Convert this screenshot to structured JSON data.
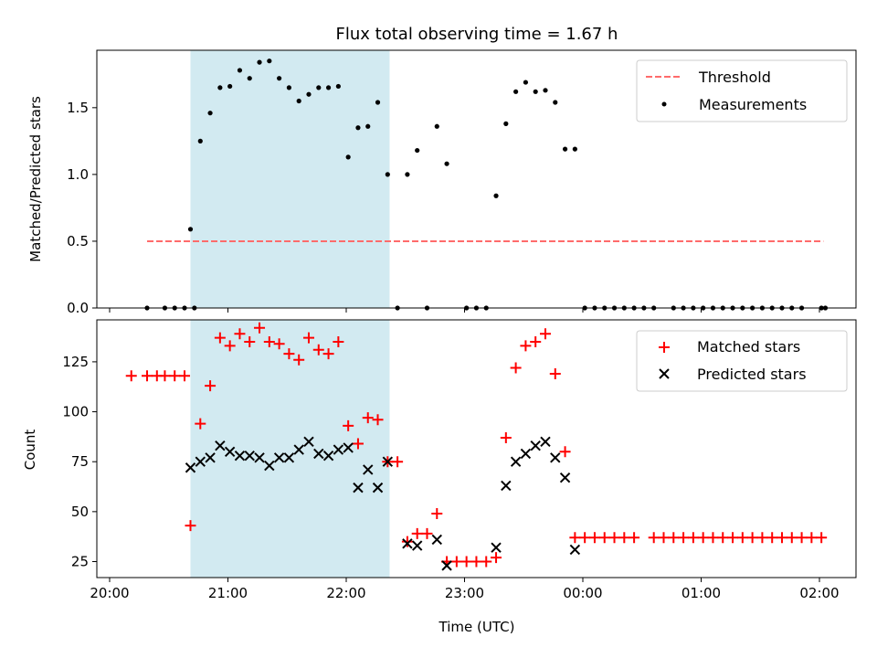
{
  "chart_data": [
    {
      "type": "scatter",
      "title": "Flux total observing time = 1.67 h",
      "xlabel": "",
      "ylabel": "Matched/Predicted stars",
      "xlim": [
        "20:00",
        "02:00"
      ],
      "ylim": [
        0,
        1.93
      ],
      "yticks": [
        0.0,
        0.5,
        1.0,
        1.5
      ],
      "ytick_labels": [
        "0.0",
        "0.5",
        "1.0",
        "1.5"
      ],
      "legend_position": "upper right",
      "highlight_span": {
        "start": "20:41",
        "end": "22:22",
        "color": "#add8e6"
      },
      "threshold": {
        "name": "Threshold",
        "value": 0.5,
        "x_start": "20:19",
        "x_end": "02:02",
        "color": "#ff6b6b",
        "style": "dashed"
      },
      "series": [
        {
          "name": "Measurements",
          "color": "#000000",
          "marker": "dot",
          "points": [
            [
              "20:19",
              0
            ],
            [
              "20:28",
              0
            ],
            [
              "20:33",
              0
            ],
            [
              "20:38",
              0
            ],
            [
              "20:43",
              0
            ],
            [
              "20:41",
              0.59
            ],
            [
              "20:46",
              1.25
            ],
            [
              "20:51",
              1.46
            ],
            [
              "20:56",
              1.65
            ],
            [
              "21:01",
              1.66
            ],
            [
              "21:06",
              1.78
            ],
            [
              "21:11",
              1.72
            ],
            [
              "21:16",
              1.84
            ],
            [
              "21:21",
              1.85
            ],
            [
              "21:26",
              1.72
            ],
            [
              "21:31",
              1.65
            ],
            [
              "21:36",
              1.55
            ],
            [
              "21:41",
              1.6
            ],
            [
              "21:46",
              1.65
            ],
            [
              "21:51",
              1.65
            ],
            [
              "21:56",
              1.66
            ],
            [
              "22:01",
              1.13
            ],
            [
              "22:06",
              1.35
            ],
            [
              "22:11",
              1.36
            ],
            [
              "22:16",
              1.54
            ],
            [
              "22:21",
              1.0
            ],
            [
              "22:26",
              0
            ],
            [
              "22:31",
              1.0
            ],
            [
              "22:36",
              1.18
            ],
            [
              "22:41",
              0
            ],
            [
              "22:46",
              1.36
            ],
            [
              "22:51",
              1.08
            ],
            [
              "23:01",
              0
            ],
            [
              "23:06",
              0
            ],
            [
              "23:11",
              0
            ],
            [
              "23:16",
              0.84
            ],
            [
              "23:21",
              1.38
            ],
            [
              "23:26",
              1.62
            ],
            [
              "23:31",
              1.69
            ],
            [
              "23:36",
              1.62
            ],
            [
              "23:41",
              1.63
            ],
            [
              "23:46",
              1.54
            ],
            [
              "23:51",
              1.19
            ],
            [
              "23:56",
              1.19
            ],
            [
              "00:01",
              0
            ],
            [
              "00:06",
              0
            ],
            [
              "00:11",
              0
            ],
            [
              "00:16",
              0
            ],
            [
              "00:21",
              0
            ],
            [
              "00:26",
              0
            ],
            [
              "00:31",
              0
            ],
            [
              "00:36",
              0
            ],
            [
              "00:46",
              0
            ],
            [
              "00:51",
              0
            ],
            [
              "00:56",
              0
            ],
            [
              "01:01",
              0
            ],
            [
              "01:06",
              0
            ],
            [
              "01:11",
              0
            ],
            [
              "01:16",
              0
            ],
            [
              "01:21",
              0
            ],
            [
              "01:26",
              0
            ],
            [
              "01:31",
              0
            ],
            [
              "01:36",
              0
            ],
            [
              "01:41",
              0
            ],
            [
              "01:46",
              0
            ],
            [
              "01:51",
              0
            ],
            [
              "02:01",
              0
            ],
            [
              "02:03",
              0
            ]
          ]
        }
      ]
    },
    {
      "type": "scatter",
      "title": "",
      "xlabel": "Time (UTC)",
      "ylabel": "Count",
      "xlim": [
        "20:00",
        "02:00"
      ],
      "ylim": [
        17,
        146
      ],
      "xticks": [
        "20:00",
        "21:00",
        "22:00",
        "23:00",
        "00:00",
        "01:00",
        "02:00"
      ],
      "yticks": [
        25,
        50,
        75,
        100,
        125
      ],
      "legend_position": "upper right",
      "highlight_span": {
        "start": "20:41",
        "end": "22:22",
        "color": "#add8e6"
      },
      "series": [
        {
          "name": "Matched stars",
          "color": "#ff0000",
          "marker": "plus",
          "points": [
            [
              "20:11",
              118
            ],
            [
              "20:19",
              118
            ],
            [
              "20:24",
              118
            ],
            [
              "20:28",
              118
            ],
            [
              "20:33",
              118
            ],
            [
              "20:38",
              118
            ],
            [
              "20:41",
              43
            ],
            [
              "20:46",
              94
            ],
            [
              "20:51",
              113
            ],
            [
              "20:56",
              137
            ],
            [
              "21:01",
              133
            ],
            [
              "21:06",
              139
            ],
            [
              "21:11",
              135
            ],
            [
              "21:16",
              142
            ],
            [
              "21:21",
              135
            ],
            [
              "21:26",
              134
            ],
            [
              "21:31",
              129
            ],
            [
              "21:36",
              126
            ],
            [
              "21:41",
              137
            ],
            [
              "21:46",
              131
            ],
            [
              "21:51",
              129
            ],
            [
              "21:56",
              135
            ],
            [
              "22:01",
              93
            ],
            [
              "22:06",
              84
            ],
            [
              "22:11",
              97
            ],
            [
              "22:16",
              96
            ],
            [
              "22:21",
              75
            ],
            [
              "22:26",
              75
            ],
            [
              "22:31",
              35
            ],
            [
              "22:36",
              39
            ],
            [
              "22:41",
              39
            ],
            [
              "22:46",
              49
            ],
            [
              "22:51",
              25
            ],
            [
              "22:56",
              25
            ],
            [
              "23:01",
              25
            ],
            [
              "23:06",
              25
            ],
            [
              "23:11",
              25
            ],
            [
              "23:16",
              27
            ],
            [
              "23:21",
              87
            ],
            [
              "23:26",
              122
            ],
            [
              "23:31",
              133
            ],
            [
              "23:36",
              135
            ],
            [
              "23:41",
              139
            ],
            [
              "23:46",
              119
            ],
            [
              "23:51",
              80
            ],
            [
              "23:56",
              37
            ],
            [
              "00:01",
              37
            ],
            [
              "00:06",
              37
            ],
            [
              "00:11",
              37
            ],
            [
              "00:16",
              37
            ],
            [
              "00:21",
              37
            ],
            [
              "00:26",
              37
            ],
            [
              "00:36",
              37
            ],
            [
              "00:41",
              37
            ],
            [
              "00:46",
              37
            ],
            [
              "00:51",
              37
            ],
            [
              "00:56",
              37
            ],
            [
              "01:01",
              37
            ],
            [
              "01:06",
              37
            ],
            [
              "01:11",
              37
            ],
            [
              "01:16",
              37
            ],
            [
              "01:21",
              37
            ],
            [
              "01:26",
              37
            ],
            [
              "01:31",
              37
            ],
            [
              "01:36",
              37
            ],
            [
              "01:41",
              37
            ],
            [
              "01:46",
              37
            ],
            [
              "01:51",
              37
            ],
            [
              "01:56",
              37
            ],
            [
              "02:01",
              37
            ]
          ]
        },
        {
          "name": "Predicted stars",
          "color": "#000000",
          "marker": "x",
          "points": [
            [
              "20:41",
              72
            ],
            [
              "20:46",
              75
            ],
            [
              "20:51",
              77
            ],
            [
              "20:56",
              83
            ],
            [
              "21:01",
              80
            ],
            [
              "21:06",
              78
            ],
            [
              "21:11",
              78
            ],
            [
              "21:16",
              77
            ],
            [
              "21:21",
              73
            ],
            [
              "21:26",
              77
            ],
            [
              "21:31",
              77
            ],
            [
              "21:36",
              81
            ],
            [
              "21:41",
              85
            ],
            [
              "21:46",
              79
            ],
            [
              "21:51",
              78
            ],
            [
              "21:56",
              81
            ],
            [
              "22:01",
              82
            ],
            [
              "22:06",
              62
            ],
            [
              "22:11",
              71
            ],
            [
              "22:16",
              62
            ],
            [
              "22:21",
              75
            ],
            [
              "22:31",
              34
            ],
            [
              "22:36",
              33
            ],
            [
              "22:46",
              36
            ],
            [
              "22:51",
              23
            ],
            [
              "23:16",
              32
            ],
            [
              "23:21",
              63
            ],
            [
              "23:26",
              75
            ],
            [
              "23:31",
              79
            ],
            [
              "23:36",
              83
            ],
            [
              "23:41",
              85
            ],
            [
              "23:46",
              77
            ],
            [
              "23:51",
              67
            ],
            [
              "23:56",
              31
            ]
          ]
        }
      ]
    }
  ]
}
